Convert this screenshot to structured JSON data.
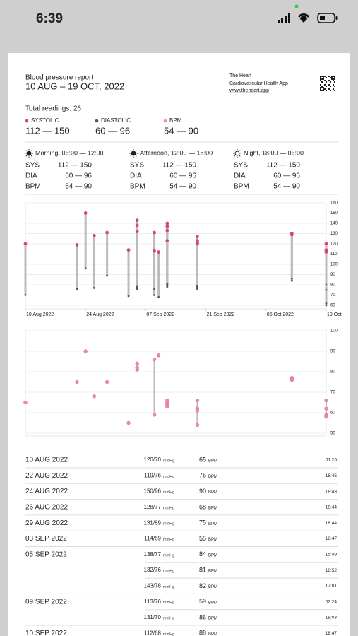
{
  "status_bar": {
    "time": "6:39"
  },
  "header": {
    "title": "Blood pressure report",
    "date_range": "10 AUG – 19 OCT, 2022",
    "app_name": "The Heart",
    "app_subtitle": "Cardiovascular Health App",
    "app_url": "www.theheart.app"
  },
  "summary": {
    "total": "Total readings: 26",
    "systolic_range": "112 — 150",
    "diastolic_range": "60 — 96",
    "bpm_range": "54 — 90"
  },
  "periods": [
    {
      "label": "Morning, 06:00 — 12:00",
      "rows": [
        {
          "label": "SYS",
          "value": "112 — 150"
        },
        {
          "label": "DIA",
          "value": "60 — 96"
        },
        {
          "label": "BPM",
          "value": "54 — 90"
        }
      ]
    },
    {
      "label": "Afternoon, 12:00 — 18:00",
      "rows": [
        {
          "label": "SYS",
          "value": "112 — 150"
        },
        {
          "label": "DIA",
          "value": "60 — 96"
        },
        {
          "label": "BPM",
          "value": "54 — 90"
        }
      ]
    },
    {
      "label": "Night, 18:00 — 06:00",
      "rows": [
        {
          "label": "SYS",
          "value": "112 — 150"
        },
        {
          "label": "DIA",
          "value": "60 — 96"
        },
        {
          "label": "BPM",
          "value": "54 — 90"
        }
      ]
    }
  ],
  "chart_data": [
    {
      "type": "range_bar",
      "x": [
        "2022-08-10",
        "2022-08-22",
        "2022-08-24",
        "2022-08-26",
        "2022-08-29",
        "2022-09-03",
        "2022-09-05",
        "2022-09-05",
        "2022-09-05",
        "2022-09-09",
        "2022-09-09",
        "2022-09-10",
        "2022-09-12",
        "2022-09-12",
        "2022-09-12",
        "2022-09-12",
        "2022-09-19",
        "2022-09-19",
        "2022-09-19",
        "2022-09-19",
        "2022-10-11",
        "2022-10-11",
        "2022-10-19",
        "2022-10-19",
        "2022-10-19",
        "2022-10-19"
      ],
      "series": [
        {
          "name": "SYSTOLIC",
          "color": "#d9486c",
          "values": [
            120,
            119,
            150,
            128,
            131,
            114,
            138,
            132,
            143,
            113,
            131,
            112,
            140,
            137,
            133,
            123,
            127,
            123,
            121,
            120,
            130,
            129,
            120,
            114,
            113,
            112
          ]
        },
        {
          "name": "DIASTOLIC",
          "color": "#555555",
          "values": [
            70,
            76,
            96,
            77,
            89,
            69,
            77,
            76,
            78,
            76,
            70,
            68,
            80,
            78,
            81,
            79,
            79,
            78,
            77,
            76,
            86,
            84,
            80,
            75,
            62,
            60
          ]
        }
      ],
      "xlim": [
        "2022-08-10",
        "2022-10-19"
      ],
      "xticks": [
        {
          "value": "2022-08-10",
          "label": "10 Aug 2022"
        },
        {
          "value": "2022-08-24",
          "label": "24 Aug 2022"
        },
        {
          "value": "2022-09-07",
          "label": "07 Sep 2022"
        },
        {
          "value": "2022-09-21",
          "label": "21 Sep 2022"
        },
        {
          "value": "2022-10-05",
          "label": "05 Oct 2022"
        },
        {
          "value": "2022-10-19",
          "label": "19 Oct"
        }
      ],
      "ylim": [
        60,
        160
      ],
      "yticks": [
        60,
        70,
        80,
        90,
        100,
        110,
        120,
        130,
        140,
        150,
        160
      ],
      "grid": true
    },
    {
      "type": "scatter",
      "x": [
        "2022-08-10",
        "2022-08-22",
        "2022-08-24",
        "2022-08-26",
        "2022-08-29",
        "2022-09-03",
        "2022-09-05",
        "2022-09-05",
        "2022-09-05",
        "2022-09-09",
        "2022-09-09",
        "2022-09-10",
        "2022-09-12",
        "2022-09-12",
        "2022-09-12",
        "2022-09-12",
        "2022-09-19",
        "2022-09-19",
        "2022-09-19",
        "2022-09-19",
        "2022-10-11",
        "2022-10-11",
        "2022-10-19",
        "2022-10-19",
        "2022-10-19",
        "2022-10-19"
      ],
      "series": [
        {
          "name": "BPM",
          "color": "#f08aa0",
          "values": [
            65,
            75,
            90,
            68,
            75,
            55,
            84,
            81,
            82,
            59,
            86,
            88,
            66,
            65,
            64,
            63,
            66,
            62,
            61,
            54,
            77,
            76,
            66,
            62,
            59,
            58
          ]
        }
      ],
      "xlim": [
        "2022-08-10",
        "2022-10-19"
      ],
      "ylim": [
        50,
        100
      ],
      "yticks": [
        50,
        60,
        70,
        80,
        90,
        100
      ],
      "grid": true
    }
  ],
  "table": {
    "bp_unit": "mmHg",
    "bpm_unit": "BPM",
    "rows": [
      {
        "date": "10 AUG 2022",
        "bp": "120/70",
        "bpm": "65",
        "time": "01:25"
      },
      {
        "date": "22 AUG 2022",
        "bp": "119/76",
        "bpm": "75",
        "time": "18:45"
      },
      {
        "date": "24 AUG 2022",
        "bp": "150/96",
        "bpm": "90",
        "time": "18:43"
      },
      {
        "date": "26 AUG 2022",
        "bp": "128/77",
        "bpm": "68",
        "time": "18:44"
      },
      {
        "date": "29 AUG 2022",
        "bp": "131/89",
        "bpm": "75",
        "time": "18:44"
      },
      {
        "date": "03 SEP 2022",
        "bp": "114/69",
        "bpm": "55",
        "time": "18:47"
      },
      {
        "date": "05 SEP 2022",
        "bp": "138/77",
        "bpm": "84",
        "time": "15:49"
      },
      {
        "bp": "132/76",
        "bpm": "81",
        "time": "18:52"
      },
      {
        "bp": "143/78",
        "bpm": "82",
        "time": "17:01"
      },
      {
        "date": "09 SEP 2022",
        "bp": "113/76",
        "bpm": "59",
        "time": "02:24"
      },
      {
        "bp": "131/70",
        "bpm": "86",
        "time": "18:03"
      },
      {
        "date": "10 SEP 2022",
        "bp": "112/68",
        "bpm": "88",
        "time": "18:47"
      }
    ]
  }
}
